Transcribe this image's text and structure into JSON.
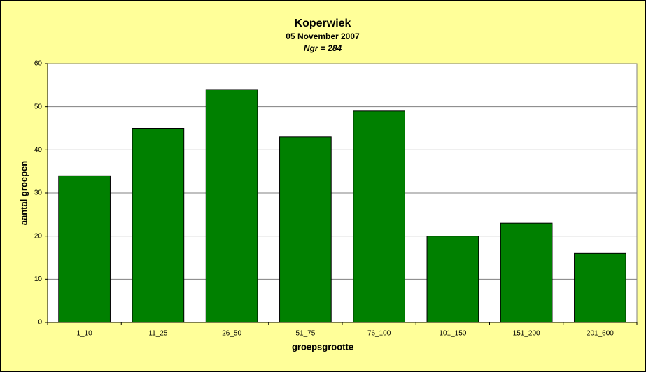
{
  "chart_data": {
    "type": "bar",
    "title": "Koperwiek",
    "subtitle": "05 November 2007",
    "note": "Ngr = 284",
    "x_label": "groepsgrootte",
    "y_label": "aantal groepen",
    "categories": [
      "1_10",
      "11_25",
      "26_50",
      "51_75",
      "76_100",
      "101_150",
      "151_200",
      "201_600"
    ],
    "values": [
      34,
      45,
      54,
      43,
      49,
      20,
      23,
      16
    ],
    "color": "#008000",
    "ylim": [
      0,
      60
    ],
    "yticks": [
      0,
      10,
      20,
      30,
      40,
      50,
      60
    ],
    "grid": true
  }
}
